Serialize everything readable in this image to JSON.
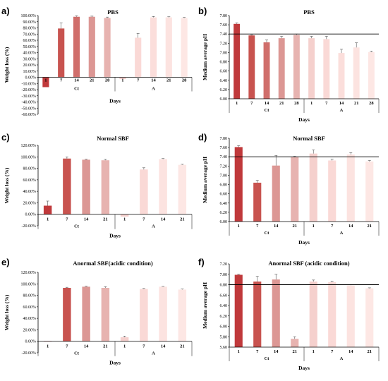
{
  "colors": [
    "#c0393b",
    "#c8534f",
    "#d06e6b",
    "#dc9794",
    "#e7b3b0",
    "#f5d0cd",
    "#fad9d6",
    "#fbdedb",
    "#fce3e0",
    "#fde7e4"
  ],
  "chart_data": [
    {
      "id": "a",
      "panel_label": "a)",
      "type": "bar",
      "title": "PBS",
      "ylabel": "Weight loss (%)",
      "xlabel": "Days",
      "ylim": [
        -60,
        100
      ],
      "ystep": 10,
      "ydecimals": 2,
      "ysuffix": "%",
      "groups": [
        {
          "name": "Ct",
          "start": 0,
          "end": 4
        },
        {
          "name": "A",
          "start": 5,
          "end": 9
        }
      ],
      "categories": [
        "1",
        "7",
        "14",
        "21",
        "28",
        "1",
        "7",
        "14",
        "21",
        "28"
      ],
      "values": [
        -16,
        79,
        98,
        98,
        96,
        -3,
        64,
        97,
        97,
        96
      ],
      "errors": [
        0,
        9,
        1.5,
        1,
        1.5,
        0,
        7,
        1.5,
        1,
        1
      ],
      "ref_line": null
    },
    {
      "id": "b",
      "panel_label": "b)",
      "type": "bar",
      "title": "PBS",
      "ylabel": "Medium average pH",
      "xlabel": "Days",
      "ylim": [
        6.0,
        7.8
      ],
      "ystep": 0.2,
      "ydecimals": 2,
      "ysuffix": "",
      "groups": [
        {
          "name": "Ct",
          "start": 0,
          "end": 4
        },
        {
          "name": "A",
          "start": 5,
          "end": 9
        }
      ],
      "categories": [
        "1",
        "7",
        "14",
        "21",
        "28",
        "1",
        "7",
        "14",
        "21",
        "28"
      ],
      "values": [
        7.62,
        7.37,
        7.22,
        7.31,
        7.38,
        7.31,
        7.29,
        6.99,
        7.11,
        7.01
      ],
      "errors": [
        0.02,
        0.01,
        0.05,
        0.04,
        0.02,
        0.04,
        0.06,
        0.08,
        0.1,
        0.02
      ],
      "ref_line": 7.4
    },
    {
      "id": "c",
      "panel_label": "c)",
      "type": "bar",
      "title": "Normal SBF",
      "ylabel": "Weight loss (%)",
      "xlabel": "Days",
      "ylim": [
        -20,
        120
      ],
      "ystep": 20,
      "ydecimals": 2,
      "ysuffix": "%",
      "groups": [
        {
          "name": "Ct",
          "start": 0,
          "end": 3
        },
        {
          "name": "A",
          "start": 4,
          "end": 7
        }
      ],
      "categories": [
        "1",
        "7",
        "14",
        "21",
        "1",
        "7",
        "14",
        "21"
      ],
      "values": [
        15,
        97,
        95,
        94,
        -4,
        78,
        96,
        86
      ],
      "errors": [
        8,
        3,
        1,
        1.5,
        0,
        3,
        1,
        1
      ],
      "ref_line": null
    },
    {
      "id": "d",
      "panel_label": "d)",
      "type": "bar",
      "title": "Normal SBF",
      "ylabel": "Medium average pH",
      "xlabel": "Days",
      "ylim": [
        6.0,
        7.8
      ],
      "ystep": 0.2,
      "ydecimals": 2,
      "ysuffix": "",
      "groups": [
        {
          "name": "Ct",
          "start": 0,
          "end": 3
        },
        {
          "name": "A",
          "start": 4,
          "end": 7
        }
      ],
      "categories": [
        "1",
        "7",
        "14",
        "21",
        "1",
        "7",
        "14",
        "21"
      ],
      "values": [
        7.61,
        6.84,
        7.21,
        7.39,
        7.47,
        7.32,
        7.45,
        7.3
      ],
      "errors": [
        0.03,
        0.05,
        0.22,
        0.02,
        0.08,
        0.03,
        0.04,
        0.02
      ],
      "ref_line": 7.4
    },
    {
      "id": "e",
      "panel_label": "e)",
      "type": "bar",
      "title": "Anormal SBF(acidic condition)",
      "ylabel": "Weight loss (%)",
      "xlabel": "Days",
      "ylim": [
        -20,
        120
      ],
      "ystep": 20,
      "ydecimals": 2,
      "ysuffix": "%",
      "groups": [
        {
          "name": "Ct",
          "start": 0,
          "end": 3
        },
        {
          "name": "A",
          "start": 4,
          "end": 7
        }
      ],
      "categories": [
        "1",
        "7",
        "14",
        "21",
        "1",
        "7",
        "14",
        "21"
      ],
      "values": [
        0.5,
        93,
        95,
        93,
        7,
        91,
        95,
        90
      ],
      "errors": [
        0,
        1,
        1,
        2,
        2,
        1,
        0.5,
        1
      ],
      "ref_line": null
    },
    {
      "id": "f",
      "panel_label": "f)",
      "type": "bar",
      "title": "Anormal SBF (acidic condition)",
      "ylabel": "Medium average pH",
      "xlabel": "Days",
      "ylim": [
        5.6,
        7.2
      ],
      "ystep": 0.2,
      "ydecimals": 2,
      "ysuffix": "",
      "groups": [
        {
          "name": "Ct",
          "start": 0,
          "end": 3
        },
        {
          "name": "A",
          "start": 4,
          "end": 7
        }
      ],
      "categories": [
        "1",
        "7",
        "14",
        "21",
        "1",
        "7",
        "14",
        "21"
      ],
      "values": [
        6.99,
        6.86,
        6.9,
        5.76,
        6.86,
        6.85,
        6.79,
        6.73
      ],
      "errors": [
        0.01,
        0.1,
        0.1,
        0.04,
        0.03,
        0.02,
        0.01,
        0.01
      ],
      "ref_line": 6.8
    }
  ]
}
